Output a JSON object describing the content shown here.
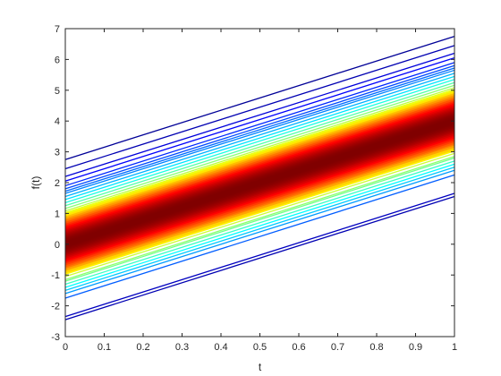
{
  "chart_data": {
    "type": "line",
    "title": "",
    "xlabel": "t",
    "ylabel": "f(t)",
    "xlim": [
      0,
      1
    ],
    "ylim": [
      -3,
      7
    ],
    "x_ticks": [
      "0",
      "0.1",
      "0.2",
      "0.3",
      "0.4",
      "0.5",
      "0.6",
      "0.7",
      "0.8",
      "0.9",
      "1"
    ],
    "y_ticks": [
      "-3",
      "-2",
      "-1",
      "0",
      "1",
      "2",
      "3",
      "4",
      "5",
      "6",
      "7"
    ],
    "grid": false,
    "legend": "none",
    "colormap": "jet",
    "colormap_mapping": "line density: sparse outer lines dark blue, dense center lines dark red",
    "slope": 4,
    "description_of_series": "family of parallel straight lines f(t) = c + 4t",
    "intercepts": [
      -2.45,
      -2.35,
      -1.75,
      -1.6,
      -1.5,
      -1.4,
      -1.3,
      -1.2,
      -1.15,
      -1.05,
      -0.95,
      -0.9,
      -0.82,
      -0.75,
      -0.7,
      -0.64,
      -0.58,
      -0.52,
      -0.47,
      -0.42,
      -0.37,
      -0.32,
      -0.28,
      -0.24,
      -0.2,
      -0.16,
      -0.12,
      -0.08,
      -0.05,
      -0.02,
      0.01,
      0.04,
      0.07,
      0.1,
      0.13,
      0.16,
      0.19,
      0.22,
      0.26,
      0.3,
      0.34,
      0.38,
      0.42,
      0.47,
      0.52,
      0.57,
      0.62,
      0.68,
      0.74,
      0.8,
      0.86,
      0.93,
      1.0,
      1.08,
      1.16,
      1.25,
      1.35,
      1.45,
      1.55,
      1.65,
      1.72,
      1.8,
      1.9,
      2.05,
      2.2,
      2.45,
      2.75
    ]
  }
}
